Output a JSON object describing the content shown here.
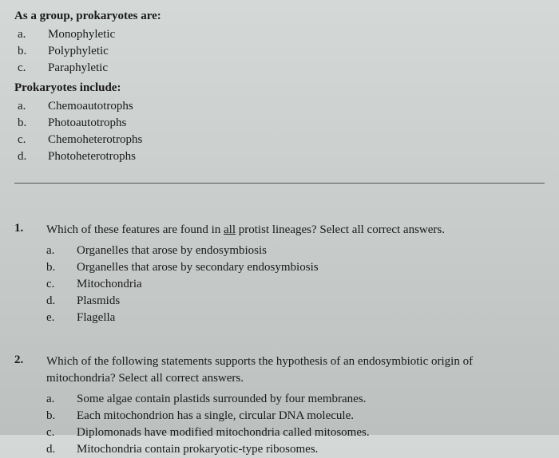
{
  "section1": {
    "header": "As a group, prokaryotes are:",
    "options": [
      {
        "letter": "a.",
        "text": "Monophyletic"
      },
      {
        "letter": "b.",
        "text": "Polyphyletic"
      },
      {
        "letter": "c.",
        "text": "Paraphyletic"
      }
    ],
    "subheader": "Prokaryotes include:",
    "suboptions": [
      {
        "letter": "a.",
        "text": "Chemoautotrophs"
      },
      {
        "letter": "b.",
        "text": "Photoautotrophs"
      },
      {
        "letter": "c.",
        "text": "Chemoheterotrophs"
      },
      {
        "letter": "d.",
        "text": "Photoheterotrophs"
      }
    ]
  },
  "question1": {
    "number": "1.",
    "text_before": "Which of these features are found in ",
    "text_underlined": "all",
    "text_after": " protist lineages? Select all correct answers.",
    "options": [
      {
        "letter": "a.",
        "text": "Organelles that arose by endosymbiosis"
      },
      {
        "letter": "b.",
        "text": "Organelles that arose by secondary endosymbiosis"
      },
      {
        "letter": "c.",
        "text": "Mitochondria"
      },
      {
        "letter": "d.",
        "text": "Plasmids"
      },
      {
        "letter": "e.",
        "text": "Flagella"
      }
    ]
  },
  "question2": {
    "number": "2.",
    "text": "Which of the following statements supports the hypothesis of an endosymbiotic origin of mitochondria? Select all correct answers.",
    "options": [
      {
        "letter": "a.",
        "text": "Some algae contain plastids surrounded by four membranes."
      },
      {
        "letter": "b.",
        "text": "Each mitochondrion has a single, circular DNA molecule."
      },
      {
        "letter": "c.",
        "text": "Diplomonads have modified mitochondria called mitosomes."
      },
      {
        "letter": "d.",
        "text": "Mitochondria contain prokaryotic-type ribosomes."
      }
    ]
  }
}
